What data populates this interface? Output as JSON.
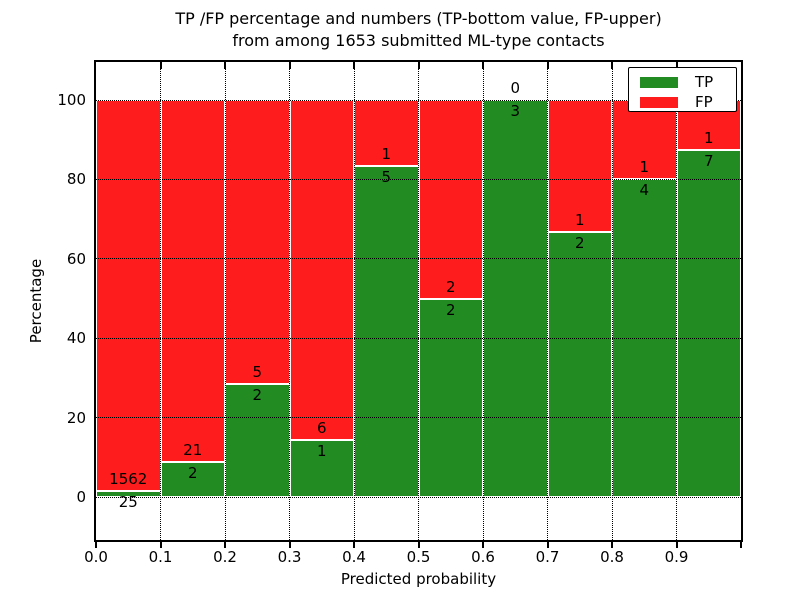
{
  "chart_data": {
    "type": "bar",
    "stacked": true,
    "title_line1": "TP /FP percentage and numbers (TP-bottom value, FP-upper)",
    "title_line2": "from among 1653 submitted ML-type contacts",
    "xlabel": "Predicted probability",
    "ylabel": "Percentage",
    "total_contacts": 1653,
    "bin_width": 0.1,
    "xlim": [
      0.0,
      1.0
    ],
    "ylim": [
      -11,
      110
    ],
    "x_tick_labels": [
      "0.0",
      "0.1",
      "0.2",
      "0.3",
      "0.4",
      "0.5",
      "0.6",
      "0.7",
      "0.8",
      "0.9"
    ],
    "y_ticks": [
      0,
      20,
      40,
      60,
      80,
      100
    ],
    "y_tick_labels": [
      "0",
      "20",
      "40",
      "60",
      "80",
      "100"
    ],
    "categories": [
      "0.0-0.1",
      "0.1-0.2",
      "0.2-0.3",
      "0.3-0.4",
      "0.4-0.5",
      "0.5-0.6",
      "0.6-0.7",
      "0.7-0.8",
      "0.8-0.9",
      "0.9-1.0"
    ],
    "series": [
      {
        "name": "TP",
        "color": "#228b22",
        "values": [
          25,
          2,
          2,
          1,
          5,
          2,
          3,
          2,
          4,
          7
        ]
      },
      {
        "name": "FP",
        "color": "#ff1c1c",
        "values": [
          1562,
          21,
          5,
          6,
          1,
          2,
          0,
          1,
          1,
          1
        ]
      }
    ],
    "tp_percent": [
      1.58,
      8.7,
      28.57,
      14.29,
      83.33,
      50.0,
      100.0,
      66.67,
      80.0,
      87.5
    ],
    "bar_edge_color": "#ffffff",
    "grid": {
      "on": true,
      "style": "dotted",
      "color": "#000000"
    },
    "legend": {
      "position": "upper right",
      "entries": [
        {
          "label": "TP",
          "color": "#228b22"
        },
        {
          "label": "FP",
          "color": "#ff1c1c"
        }
      ]
    }
  }
}
